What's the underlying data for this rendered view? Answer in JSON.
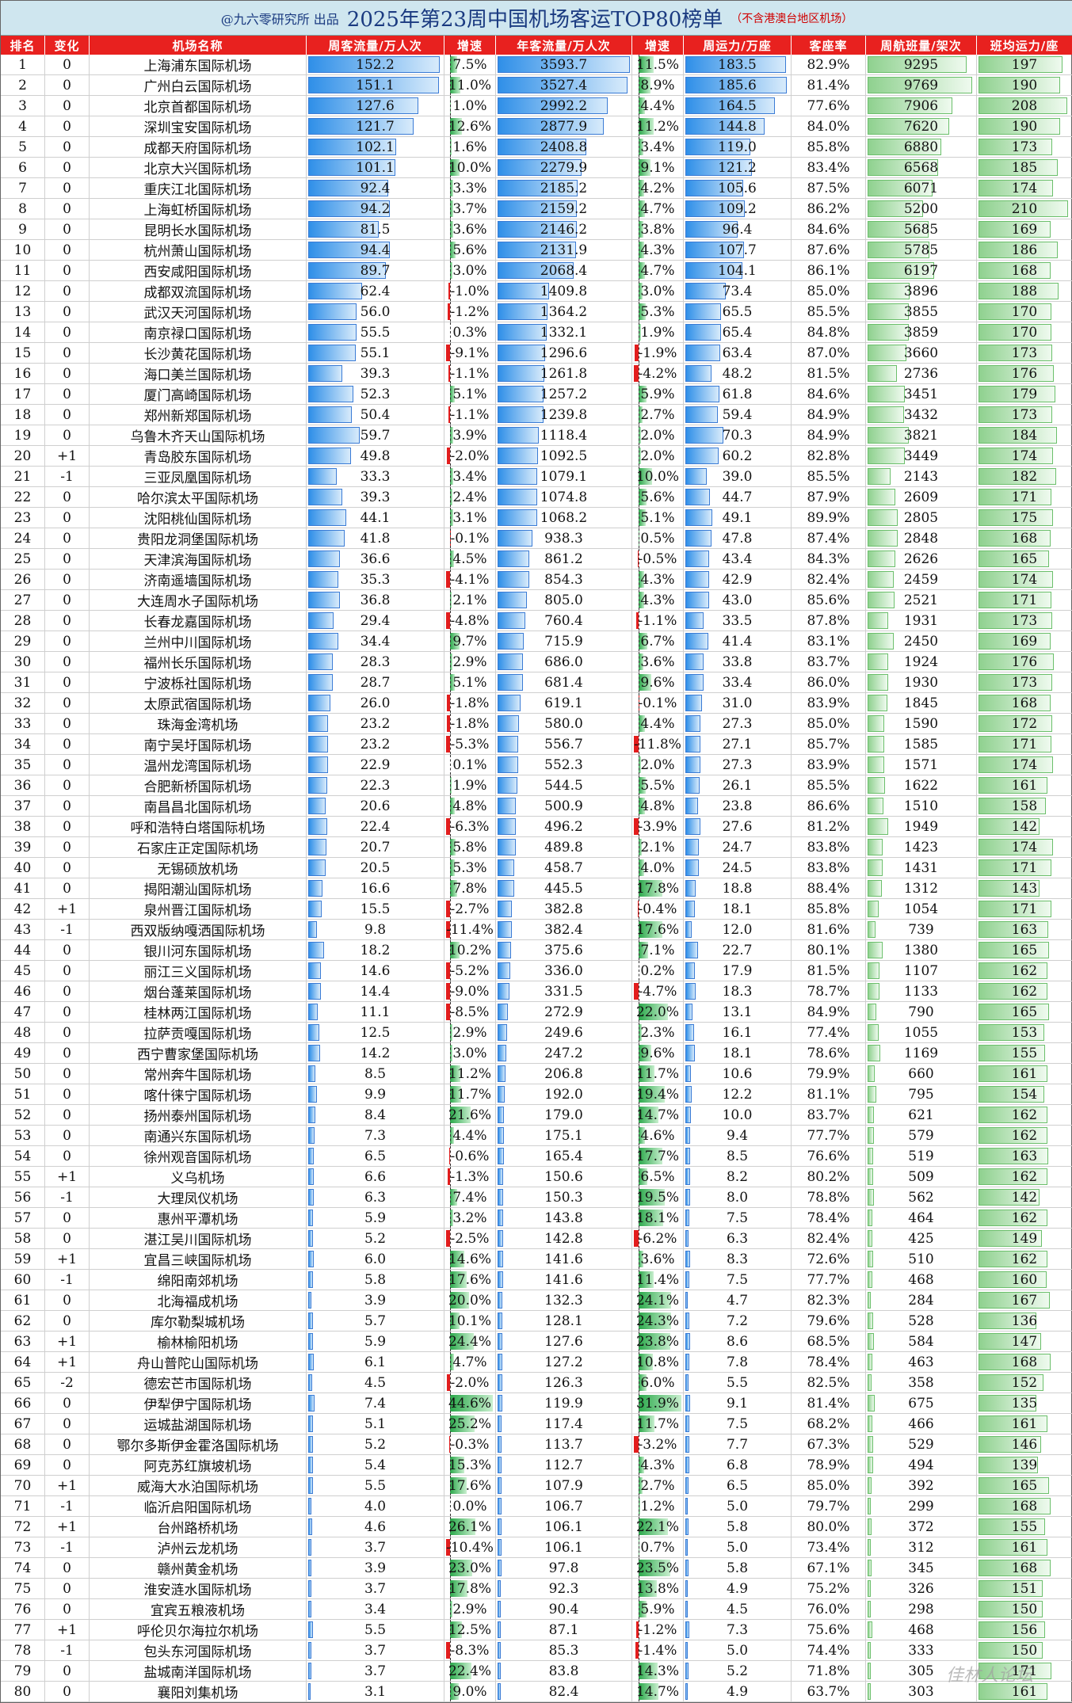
{
  "title": {
    "source": "@九六零研究所 出品",
    "main": "2025年第23周中国机场客运TOP80榜单",
    "note": "（不含港澳台地区机场）"
  },
  "headers": [
    "排名",
    "变化",
    "机场名称",
    "周客流量/万人次",
    "增速",
    "年客流量/万人次",
    "增速",
    "周运力/万座",
    "客座率",
    "周航班量/架次",
    "班均运力/座"
  ],
  "watermark": "佳林人论坛",
  "colors": {
    "header_bg": "#e8211f",
    "title_bg": "#cfe6ef",
    "bar_blue": "#2f8fe8",
    "bar_green": "#8fd18f",
    "neg": "#e21d1d",
    "pos": "#2aa84a"
  },
  "chart_data": {
    "type": "table",
    "columns": [
      "rank",
      "change",
      "airport",
      "weekly_pax",
      "weekly_growth",
      "annual_pax",
      "annual_growth",
      "weekly_capacity",
      "load_factor",
      "weekly_flights",
      "avg_seats"
    ],
    "rows": [
      [
        "1",
        "0",
        "上海浦东国际机场",
        "152.2",
        "7.5%",
        "3593.7",
        "11.5%",
        "183.5",
        "82.9%",
        "9295",
        "197"
      ],
      [
        "2",
        "0",
        "广州白云国际机场",
        "151.1",
        "11.0%",
        "3527.4",
        "8.9%",
        "185.6",
        "81.4%",
        "9769",
        "190"
      ],
      [
        "3",
        "0",
        "北京首都国际机场",
        "127.6",
        "1.0%",
        "2992.2",
        "4.4%",
        "164.5",
        "77.6%",
        "7906",
        "208"
      ],
      [
        "4",
        "0",
        "深圳宝安国际机场",
        "121.7",
        "12.6%",
        "2877.9",
        "11.2%",
        "144.8",
        "84.0%",
        "7620",
        "190"
      ],
      [
        "5",
        "0",
        "成都天府国际机场",
        "102.1",
        "1.6%",
        "2408.8",
        "3.4%",
        "119.0",
        "85.8%",
        "6880",
        "173"
      ],
      [
        "6",
        "0",
        "北京大兴国际机场",
        "101.1",
        "10.0%",
        "2279.9",
        "9.1%",
        "121.2",
        "83.4%",
        "6568",
        "185"
      ],
      [
        "7",
        "0",
        "重庆江北国际机场",
        "92.4",
        "3.3%",
        "2185.2",
        "4.2%",
        "105.6",
        "87.5%",
        "6071",
        "174"
      ],
      [
        "8",
        "0",
        "上海虹桥国际机场",
        "94.2",
        "3.7%",
        "2159.2",
        "4.7%",
        "109.2",
        "86.2%",
        "5200",
        "210"
      ],
      [
        "9",
        "0",
        "昆明长水国际机场",
        "81.5",
        "3.6%",
        "2146.2",
        "3.8%",
        "96.4",
        "84.6%",
        "5685",
        "169"
      ],
      [
        "10",
        "0",
        "杭州萧山国际机场",
        "94.4",
        "5.6%",
        "2131.9",
        "4.3%",
        "107.7",
        "87.6%",
        "5785",
        "186"
      ],
      [
        "11",
        "0",
        "西安咸阳国际机场",
        "89.7",
        "3.0%",
        "2068.4",
        "4.7%",
        "104.1",
        "86.1%",
        "6197",
        "168"
      ],
      [
        "12",
        "0",
        "成都双流国际机场",
        "62.4",
        "-1.0%",
        "1409.8",
        "3.0%",
        "73.4",
        "85.0%",
        "3896",
        "188"
      ],
      [
        "13",
        "0",
        "武汉天河国际机场",
        "56.0",
        "-1.2%",
        "1364.2",
        "5.3%",
        "65.5",
        "85.5%",
        "3855",
        "170"
      ],
      [
        "14",
        "0",
        "南京禄口国际机场",
        "55.5",
        "0.3%",
        "1332.1",
        "1.9%",
        "65.4",
        "84.8%",
        "3859",
        "170"
      ],
      [
        "15",
        "0",
        "长沙黄花国际机场",
        "55.1",
        "-9.1%",
        "1296.6",
        "-1.9%",
        "63.4",
        "87.0%",
        "3660",
        "173"
      ],
      [
        "16",
        "0",
        "海口美兰国际机场",
        "39.3",
        "-1.1%",
        "1261.8",
        "-4.2%",
        "48.2",
        "81.5%",
        "2736",
        "176"
      ],
      [
        "17",
        "0",
        "厦门高崎国际机场",
        "52.3",
        "5.1%",
        "1257.2",
        "5.9%",
        "61.8",
        "84.6%",
        "3451",
        "179"
      ],
      [
        "18",
        "0",
        "郑州新郑国际机场",
        "50.4",
        "-1.1%",
        "1239.8",
        "2.7%",
        "59.4",
        "84.9%",
        "3432",
        "173"
      ],
      [
        "19",
        "0",
        "乌鲁木齐天山国际机场",
        "59.7",
        "3.9%",
        "1118.4",
        "2.0%",
        "70.3",
        "84.9%",
        "3821",
        "184"
      ],
      [
        "20",
        "+1",
        "青岛胶东国际机场",
        "49.8",
        "-2.0%",
        "1092.5",
        "2.0%",
        "60.2",
        "82.8%",
        "3449",
        "174"
      ],
      [
        "21",
        "-1",
        "三亚凤凰国际机场",
        "33.3",
        "3.4%",
        "1079.1",
        "10.0%",
        "39.0",
        "85.5%",
        "2143",
        "182"
      ],
      [
        "22",
        "0",
        "哈尔滨太平国际机场",
        "39.3",
        "2.4%",
        "1074.8",
        "5.6%",
        "44.7",
        "87.9%",
        "2609",
        "171"
      ],
      [
        "23",
        "0",
        "沈阳桃仙国际机场",
        "44.1",
        "3.1%",
        "1068.2",
        "5.1%",
        "49.1",
        "89.9%",
        "2805",
        "175"
      ],
      [
        "24",
        "0",
        "贵阳龙洞堡国际机场",
        "41.8",
        "-0.1%",
        "938.3",
        "0.5%",
        "47.8",
        "87.4%",
        "2848",
        "168"
      ],
      [
        "25",
        "0",
        "天津滨海国际机场",
        "36.6",
        "4.5%",
        "861.2",
        "-0.5%",
        "43.4",
        "84.3%",
        "2626",
        "165"
      ],
      [
        "26",
        "0",
        "济南遥墙国际机场",
        "35.3",
        "-4.1%",
        "854.3",
        "4.3%",
        "42.9",
        "82.4%",
        "2459",
        "174"
      ],
      [
        "27",
        "0",
        "大连周水子国际机场",
        "36.8",
        "2.1%",
        "805.0",
        "4.3%",
        "43.0",
        "85.6%",
        "2521",
        "171"
      ],
      [
        "28",
        "0",
        "长春龙嘉国际机场",
        "29.4",
        "-4.8%",
        "760.4",
        "-1.1%",
        "33.5",
        "87.8%",
        "1931",
        "173"
      ],
      [
        "29",
        "0",
        "兰州中川国际机场",
        "34.4",
        "9.7%",
        "715.9",
        "6.7%",
        "41.4",
        "83.1%",
        "2450",
        "169"
      ],
      [
        "30",
        "0",
        "福州长乐国际机场",
        "28.3",
        "2.9%",
        "686.0",
        "3.6%",
        "33.8",
        "83.7%",
        "1924",
        "176"
      ],
      [
        "31",
        "0",
        "宁波栎社国际机场",
        "28.7",
        "5.1%",
        "681.4",
        "9.6%",
        "33.4",
        "86.0%",
        "1930",
        "173"
      ],
      [
        "32",
        "0",
        "太原武宿国际机场",
        "26.0",
        "-1.8%",
        "619.1",
        "-0.1%",
        "31.0",
        "83.9%",
        "1845",
        "168"
      ],
      [
        "33",
        "0",
        "珠海金湾机场",
        "23.2",
        "-1.8%",
        "580.0",
        "4.4%",
        "27.3",
        "85.0%",
        "1590",
        "172"
      ],
      [
        "34",
        "0",
        "南宁吴圩国际机场",
        "23.2",
        "-5.3%",
        "556.7",
        "-11.8%",
        "27.1",
        "85.7%",
        "1585",
        "171"
      ],
      [
        "35",
        "0",
        "温州龙湾国际机场",
        "22.9",
        "0.1%",
        "552.3",
        "2.0%",
        "27.3",
        "83.9%",
        "1571",
        "174"
      ],
      [
        "36",
        "0",
        "合肥新桥国际机场",
        "22.3",
        "1.9%",
        "544.5",
        "5.5%",
        "26.1",
        "85.5%",
        "1622",
        "161"
      ],
      [
        "37",
        "0",
        "南昌昌北国际机场",
        "20.6",
        "4.8%",
        "500.9",
        "4.8%",
        "23.8",
        "86.6%",
        "1510",
        "158"
      ],
      [
        "38",
        "0",
        "呼和浩特白塔国际机场",
        "22.4",
        "-6.3%",
        "496.2",
        "-3.9%",
        "27.6",
        "81.2%",
        "1949",
        "142"
      ],
      [
        "39",
        "0",
        "石家庄正定国际机场",
        "20.7",
        "5.8%",
        "489.8",
        "2.1%",
        "24.7",
        "83.8%",
        "1423",
        "174"
      ],
      [
        "40",
        "0",
        "无锡硕放机场",
        "20.5",
        "5.3%",
        "458.7",
        "4.0%",
        "24.5",
        "83.8%",
        "1431",
        "171"
      ],
      [
        "41",
        "0",
        "揭阳潮汕国际机场",
        "16.6",
        "7.8%",
        "445.5",
        "17.8%",
        "18.8",
        "88.4%",
        "1312",
        "143"
      ],
      [
        "42",
        "+1",
        "泉州晋江国际机场",
        "15.5",
        "-2.7%",
        "382.8",
        "-0.4%",
        "18.1",
        "85.8%",
        "1054",
        "171"
      ],
      [
        "43",
        "-1",
        "西双版纳嘎洒国际机场",
        "9.8",
        "-11.4%",
        "382.4",
        "17.6%",
        "12.0",
        "81.6%",
        "739",
        "163"
      ],
      [
        "44",
        "0",
        "银川河东国际机场",
        "18.2",
        "10.2%",
        "375.6",
        "7.1%",
        "22.7",
        "80.1%",
        "1380",
        "165"
      ],
      [
        "45",
        "0",
        "丽江三义国际机场",
        "14.6",
        "-5.2%",
        "336.0",
        "0.2%",
        "17.9",
        "81.5%",
        "1107",
        "162"
      ],
      [
        "46",
        "0",
        "烟台蓬莱国际机场",
        "14.4",
        "-9.0%",
        "331.5",
        "-4.7%",
        "18.3",
        "78.7%",
        "1133",
        "162"
      ],
      [
        "47",
        "0",
        "桂林两江国际机场",
        "11.1",
        "-8.5%",
        "272.9",
        "22.0%",
        "13.1",
        "84.9%",
        "790",
        "165"
      ],
      [
        "48",
        "0",
        "拉萨贡嘎国际机场",
        "12.5",
        "2.9%",
        "249.6",
        "2.3%",
        "16.1",
        "77.4%",
        "1055",
        "153"
      ],
      [
        "49",
        "0",
        "西宁曹家堡国际机场",
        "14.2",
        "3.0%",
        "247.2",
        "9.6%",
        "18.1",
        "78.6%",
        "1169",
        "155"
      ],
      [
        "50",
        "0",
        "常州奔牛国际机场",
        "8.5",
        "11.2%",
        "206.8",
        "11.7%",
        "10.6",
        "79.9%",
        "660",
        "161"
      ],
      [
        "51",
        "0",
        "喀什徕宁国际机场",
        "9.9",
        "11.7%",
        "192.0",
        "19.4%",
        "12.2",
        "81.1%",
        "795",
        "154"
      ],
      [
        "52",
        "0",
        "扬州泰州国际机场",
        "8.4",
        "21.6%",
        "179.0",
        "14.7%",
        "10.0",
        "83.7%",
        "621",
        "162"
      ],
      [
        "53",
        "0",
        "南通兴东国际机场",
        "7.3",
        "4.4%",
        "175.1",
        "4.6%",
        "9.4",
        "77.7%",
        "579",
        "162"
      ],
      [
        "54",
        "0",
        "徐州观音国际机场",
        "6.5",
        "-0.6%",
        "165.4",
        "17.7%",
        "8.5",
        "76.6%",
        "519",
        "163"
      ],
      [
        "55",
        "+1",
        "义乌机场",
        "6.6",
        "-1.3%",
        "150.6",
        "6.5%",
        "8.2",
        "80.2%",
        "509",
        "162"
      ],
      [
        "56",
        "-1",
        "大理凤仪机场",
        "6.3",
        "7.4%",
        "150.3",
        "19.5%",
        "8.0",
        "78.8%",
        "562",
        "142"
      ],
      [
        "57",
        "0",
        "惠州平潭机场",
        "5.9",
        "3.2%",
        "143.8",
        "18.1%",
        "7.5",
        "78.4%",
        "464",
        "162"
      ],
      [
        "58",
        "0",
        "湛江吴川国际机场",
        "5.2",
        "-2.5%",
        "142.8",
        "-6.2%",
        "6.3",
        "82.4%",
        "425",
        "149"
      ],
      [
        "59",
        "+1",
        "宜昌三峡国际机场",
        "6.0",
        "14.6%",
        "141.6",
        "3.6%",
        "8.3",
        "72.6%",
        "510",
        "162"
      ],
      [
        "60",
        "-1",
        "绵阳南郊机场",
        "5.8",
        "17.6%",
        "141.6",
        "11.4%",
        "7.5",
        "77.7%",
        "468",
        "160"
      ],
      [
        "61",
        "0",
        "北海福成机场",
        "3.9",
        "20.0%",
        "132.3",
        "24.1%",
        "4.7",
        "82.3%",
        "284",
        "167"
      ],
      [
        "62",
        "0",
        "库尔勒梨城机场",
        "5.7",
        "10.1%",
        "128.1",
        "24.3%",
        "7.2",
        "79.6%",
        "528",
        "136"
      ],
      [
        "63",
        "+1",
        "榆林榆阳机场",
        "5.9",
        "24.4%",
        "127.6",
        "23.8%",
        "8.6",
        "68.5%",
        "584",
        "147"
      ],
      [
        "64",
        "+1",
        "舟山普陀山国际机场",
        "6.1",
        "4.7%",
        "127.2",
        "10.8%",
        "7.8",
        "78.4%",
        "463",
        "168"
      ],
      [
        "65",
        "-2",
        "德宏芒市国际机场",
        "4.5",
        "-2.0%",
        "126.3",
        "6.0%",
        "5.5",
        "82.5%",
        "358",
        "152"
      ],
      [
        "66",
        "0",
        "伊犁伊宁国际机场",
        "7.4",
        "44.6%",
        "119.9",
        "31.9%",
        "9.1",
        "81.4%",
        "675",
        "135"
      ],
      [
        "67",
        "0",
        "运城盐湖国际机场",
        "5.1",
        "25.2%",
        "117.4",
        "11.7%",
        "7.5",
        "68.2%",
        "466",
        "161"
      ],
      [
        "68",
        "0",
        "鄂尔多斯伊金霍洛国际机场",
        "5.2",
        "-0.3%",
        "113.7",
        "-3.2%",
        "7.7",
        "67.3%",
        "529",
        "146"
      ],
      [
        "69",
        "0",
        "阿克苏红旗坡机场",
        "5.4",
        "15.3%",
        "112.7",
        "4.3%",
        "6.8",
        "78.9%",
        "494",
        "139"
      ],
      [
        "70",
        "+1",
        "威海大水泊国际机场",
        "5.5",
        "17.6%",
        "107.9",
        "2.7%",
        "6.5",
        "85.0%",
        "392",
        "165"
      ],
      [
        "71",
        "-1",
        "临沂启阳国际机场",
        "4.0",
        "0.0%",
        "106.7",
        "1.2%",
        "5.0",
        "79.7%",
        "299",
        "168"
      ],
      [
        "72",
        "+1",
        "台州路桥机场",
        "4.6",
        "26.1%",
        "106.1",
        "22.1%",
        "5.8",
        "80.0%",
        "372",
        "155"
      ],
      [
        "73",
        "-1",
        "泸州云龙机场",
        "3.7",
        "-10.4%",
        "106.1",
        "0.7%",
        "5.0",
        "73.4%",
        "312",
        "161"
      ],
      [
        "74",
        "0",
        "赣州黄金机场",
        "3.9",
        "23.0%",
        "97.8",
        "23.5%",
        "5.8",
        "67.1%",
        "345",
        "168"
      ],
      [
        "75",
        "0",
        "淮安涟水国际机场",
        "3.7",
        "17.8%",
        "92.3",
        "13.8%",
        "4.9",
        "75.2%",
        "326",
        "151"
      ],
      [
        "76",
        "0",
        "宜宾五粮液机场",
        "3.4",
        "2.9%",
        "90.4",
        "5.9%",
        "4.5",
        "76.0%",
        "298",
        "150"
      ],
      [
        "77",
        "+1",
        "呼伦贝尔海拉尔机场",
        "5.5",
        "12.5%",
        "87.1",
        "-1.2%",
        "7.3",
        "75.6%",
        "468",
        "156"
      ],
      [
        "78",
        "-1",
        "包头东河国际机场",
        "3.7",
        "-8.3%",
        "85.3",
        "-1.4%",
        "5.0",
        "74.4%",
        "333",
        "150"
      ],
      [
        "79",
        "0",
        "盐城南洋国际机场",
        "3.7",
        "22.4%",
        "83.8",
        "14.3%",
        "5.2",
        "71.8%",
        "305",
        "171"
      ],
      [
        "80",
        "0",
        "襄阳刘集机场",
        "3.1",
        "9.0%",
        "82.4",
        "14.7%",
        "4.9",
        "63.7%",
        "303",
        "161"
      ]
    ],
    "italic_names": [
      "33",
      "55",
      "56",
      "57",
      "60",
      "62",
      "63",
      "65",
      "67",
      "69",
      "72",
      "73",
      "74",
      "76",
      "80"
    ]
  }
}
